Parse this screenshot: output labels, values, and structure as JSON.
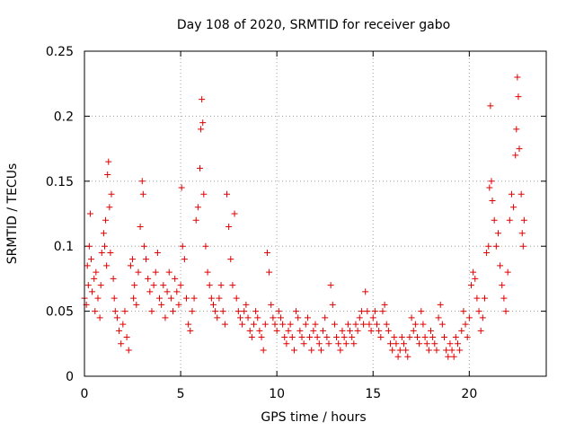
{
  "chart_data": {
    "type": "scatter",
    "title": "Day 108 of 2020, SRMTID for receiver gabo",
    "xlabel": "GPS time / hours",
    "ylabel": "SRMTID / TECUs",
    "xlim": [
      0,
      24
    ],
    "ylim": [
      0,
      0.25
    ],
    "xticks": [
      0,
      5,
      10,
      15,
      20
    ],
    "xtick_labels": [
      "0",
      "5",
      "10",
      "15",
      "20"
    ],
    "yticks": [
      0,
      0.05,
      0.1,
      0.15,
      0.2,
      0.25
    ],
    "ytick_labels": [
      "0",
      "0.05",
      "0.1",
      "0.15",
      "0.2",
      "0.25"
    ],
    "grid": true,
    "marker": "plus",
    "color": "#e00000",
    "series": [
      {
        "name": "SRMTID",
        "points": [
          [
            0.0,
            0.06
          ],
          [
            0.1,
            0.055
          ],
          [
            0.15,
            0.085
          ],
          [
            0.2,
            0.07
          ],
          [
            0.25,
            0.1
          ],
          [
            0.3,
            0.125
          ],
          [
            0.35,
            0.09
          ],
          [
            0.4,
            0.065
          ],
          [
            0.5,
            0.075
          ],
          [
            0.55,
            0.05
          ],
          [
            0.6,
            0.08
          ],
          [
            0.7,
            0.06
          ],
          [
            0.8,
            0.045
          ],
          [
            0.85,
            0.07
          ],
          [
            0.9,
            0.095
          ],
          [
            1.0,
            0.11
          ],
          [
            1.05,
            0.1
          ],
          [
            1.1,
            0.12
          ],
          [
            1.15,
            0.085
          ],
          [
            1.2,
            0.155
          ],
          [
            1.25,
            0.165
          ],
          [
            1.3,
            0.13
          ],
          [
            1.35,
            0.095
          ],
          [
            1.4,
            0.14
          ],
          [
            1.5,
            0.075
          ],
          [
            1.55,
            0.06
          ],
          [
            1.6,
            0.05
          ],
          [
            1.7,
            0.045
          ],
          [
            1.8,
            0.035
          ],
          [
            1.9,
            0.025
          ],
          [
            2.0,
            0.04
          ],
          [
            2.1,
            0.05
          ],
          [
            2.2,
            0.03
          ],
          [
            2.3,
            0.02
          ],
          [
            2.4,
            0.085
          ],
          [
            2.5,
            0.09
          ],
          [
            2.55,
            0.06
          ],
          [
            2.6,
            0.07
          ],
          [
            2.7,
            0.055
          ],
          [
            2.8,
            0.08
          ],
          [
            2.9,
            0.115
          ],
          [
            3.0,
            0.15
          ],
          [
            3.05,
            0.14
          ],
          [
            3.1,
            0.1
          ],
          [
            3.2,
            0.09
          ],
          [
            3.3,
            0.075
          ],
          [
            3.4,
            0.065
          ],
          [
            3.5,
            0.05
          ],
          [
            3.6,
            0.07
          ],
          [
            3.7,
            0.08
          ],
          [
            3.8,
            0.095
          ],
          [
            3.9,
            0.06
          ],
          [
            4.0,
            0.055
          ],
          [
            4.1,
            0.07
          ],
          [
            4.2,
            0.045
          ],
          [
            4.3,
            0.065
          ],
          [
            4.4,
            0.08
          ],
          [
            4.5,
            0.06
          ],
          [
            4.6,
            0.05
          ],
          [
            4.7,
            0.075
          ],
          [
            4.8,
            0.065
          ],
          [
            4.9,
            0.055
          ],
          [
            5.0,
            0.07
          ],
          [
            5.05,
            0.145
          ],
          [
            5.1,
            0.1
          ],
          [
            5.2,
            0.09
          ],
          [
            5.3,
            0.06
          ],
          [
            5.4,
            0.04
          ],
          [
            5.5,
            0.035
          ],
          [
            5.6,
            0.05
          ],
          [
            5.7,
            0.06
          ],
          [
            5.8,
            0.12
          ],
          [
            5.9,
            0.13
          ],
          [
            6.0,
            0.16
          ],
          [
            6.05,
            0.19
          ],
          [
            6.1,
            0.213
          ],
          [
            6.15,
            0.195
          ],
          [
            6.2,
            0.14
          ],
          [
            6.3,
            0.1
          ],
          [
            6.4,
            0.08
          ],
          [
            6.5,
            0.07
          ],
          [
            6.6,
            0.06
          ],
          [
            6.7,
            0.055
          ],
          [
            6.8,
            0.05
          ],
          [
            6.9,
            0.045
          ],
          [
            7.0,
            0.06
          ],
          [
            7.1,
            0.07
          ],
          [
            7.2,
            0.05
          ],
          [
            7.3,
            0.04
          ],
          [
            7.4,
            0.14
          ],
          [
            7.5,
            0.115
          ],
          [
            7.6,
            0.09
          ],
          [
            7.7,
            0.07
          ],
          [
            7.8,
            0.125
          ],
          [
            7.9,
            0.06
          ],
          [
            8.0,
            0.05
          ],
          [
            8.1,
            0.045
          ],
          [
            8.2,
            0.04
          ],
          [
            8.3,
            0.05
          ],
          [
            8.4,
            0.055
          ],
          [
            8.5,
            0.045
          ],
          [
            8.6,
            0.035
          ],
          [
            8.7,
            0.03
          ],
          [
            8.8,
            0.04
          ],
          [
            8.9,
            0.05
          ],
          [
            9.0,
            0.045
          ],
          [
            9.1,
            0.035
          ],
          [
            9.2,
            0.03
          ],
          [
            9.3,
            0.02
          ],
          [
            9.4,
            0.04
          ],
          [
            9.5,
            0.095
          ],
          [
            9.6,
            0.08
          ],
          [
            9.7,
            0.055
          ],
          [
            9.8,
            0.045
          ],
          [
            9.9,
            0.04
          ],
          [
            10.0,
            0.035
          ],
          [
            10.1,
            0.05
          ],
          [
            10.2,
            0.045
          ],
          [
            10.3,
            0.04
          ],
          [
            10.4,
            0.03
          ],
          [
            10.5,
            0.025
          ],
          [
            10.6,
            0.035
          ],
          [
            10.7,
            0.04
          ],
          [
            10.8,
            0.03
          ],
          [
            10.9,
            0.02
          ],
          [
            11.0,
            0.05
          ],
          [
            11.1,
            0.045
          ],
          [
            11.2,
            0.035
          ],
          [
            11.3,
            0.03
          ],
          [
            11.4,
            0.025
          ],
          [
            11.5,
            0.04
          ],
          [
            11.6,
            0.045
          ],
          [
            11.7,
            0.03
          ],
          [
            11.8,
            0.02
          ],
          [
            11.9,
            0.035
          ],
          [
            12.0,
            0.04
          ],
          [
            12.1,
            0.03
          ],
          [
            12.2,
            0.025
          ],
          [
            12.3,
            0.02
          ],
          [
            12.4,
            0.035
          ],
          [
            12.5,
            0.045
          ],
          [
            12.6,
            0.03
          ],
          [
            12.7,
            0.025
          ],
          [
            12.8,
            0.07
          ],
          [
            12.9,
            0.055
          ],
          [
            13.0,
            0.04
          ],
          [
            13.1,
            0.03
          ],
          [
            13.2,
            0.025
          ],
          [
            13.3,
            0.02
          ],
          [
            13.4,
            0.035
          ],
          [
            13.5,
            0.03
          ],
          [
            13.6,
            0.025
          ],
          [
            13.7,
            0.04
          ],
          [
            13.8,
            0.035
          ],
          [
            13.9,
            0.03
          ],
          [
            14.0,
            0.025
          ],
          [
            14.1,
            0.04
          ],
          [
            14.2,
            0.035
          ],
          [
            14.3,
            0.045
          ],
          [
            14.4,
            0.05
          ],
          [
            14.5,
            0.04
          ],
          [
            14.6,
            0.065
          ],
          [
            14.7,
            0.05
          ],
          [
            14.8,
            0.04
          ],
          [
            14.9,
            0.035
          ],
          [
            15.0,
            0.045
          ],
          [
            15.1,
            0.05
          ],
          [
            15.2,
            0.04
          ],
          [
            15.3,
            0.035
          ],
          [
            15.4,
            0.03
          ],
          [
            15.5,
            0.05
          ],
          [
            15.6,
            0.055
          ],
          [
            15.7,
            0.04
          ],
          [
            15.8,
            0.035
          ],
          [
            15.9,
            0.025
          ],
          [
            16.0,
            0.02
          ],
          [
            16.1,
            0.03
          ],
          [
            16.2,
            0.025
          ],
          [
            16.3,
            0.015
          ],
          [
            16.4,
            0.02
          ],
          [
            16.5,
            0.03
          ],
          [
            16.6,
            0.025
          ],
          [
            16.7,
            0.02
          ],
          [
            16.8,
            0.015
          ],
          [
            16.9,
            0.03
          ],
          [
            17.0,
            0.045
          ],
          [
            17.1,
            0.035
          ],
          [
            17.2,
            0.04
          ],
          [
            17.3,
            0.03
          ],
          [
            17.4,
            0.025
          ],
          [
            17.5,
            0.05
          ],
          [
            17.6,
            0.04
          ],
          [
            17.7,
            0.03
          ],
          [
            17.8,
            0.025
          ],
          [
            17.9,
            0.02
          ],
          [
            18.0,
            0.035
          ],
          [
            18.1,
            0.03
          ],
          [
            18.2,
            0.025
          ],
          [
            18.3,
            0.02
          ],
          [
            18.4,
            0.045
          ],
          [
            18.5,
            0.055
          ],
          [
            18.6,
            0.04
          ],
          [
            18.7,
            0.03
          ],
          [
            18.8,
            0.02
          ],
          [
            18.9,
            0.015
          ],
          [
            19.0,
            0.025
          ],
          [
            19.1,
            0.02
          ],
          [
            19.2,
            0.015
          ],
          [
            19.3,
            0.03
          ],
          [
            19.4,
            0.025
          ],
          [
            19.5,
            0.02
          ],
          [
            19.6,
            0.035
          ],
          [
            19.7,
            0.05
          ],
          [
            19.8,
            0.04
          ],
          [
            19.9,
            0.03
          ],
          [
            20.0,
            0.045
          ],
          [
            20.1,
            0.07
          ],
          [
            20.2,
            0.08
          ],
          [
            20.3,
            0.075
          ],
          [
            20.4,
            0.06
          ],
          [
            20.5,
            0.05
          ],
          [
            20.6,
            0.035
          ],
          [
            20.7,
            0.045
          ],
          [
            20.8,
            0.06
          ],
          [
            20.9,
            0.095
          ],
          [
            21.0,
            0.1
          ],
          [
            21.05,
            0.145
          ],
          [
            21.1,
            0.208
          ],
          [
            21.15,
            0.15
          ],
          [
            21.2,
            0.135
          ],
          [
            21.3,
            0.12
          ],
          [
            21.4,
            0.1
          ],
          [
            21.5,
            0.11
          ],
          [
            21.6,
            0.085
          ],
          [
            21.7,
            0.07
          ],
          [
            21.8,
            0.06
          ],
          [
            21.9,
            0.05
          ],
          [
            22.0,
            0.08
          ],
          [
            22.1,
            0.12
          ],
          [
            22.2,
            0.14
          ],
          [
            22.3,
            0.13
          ],
          [
            22.4,
            0.17
          ],
          [
            22.45,
            0.19
          ],
          [
            22.5,
            0.23
          ],
          [
            22.55,
            0.215
          ],
          [
            22.6,
            0.175
          ],
          [
            22.7,
            0.14
          ],
          [
            22.75,
            0.11
          ],
          [
            22.8,
            0.1
          ],
          [
            22.85,
            0.12
          ]
        ]
      }
    ]
  }
}
